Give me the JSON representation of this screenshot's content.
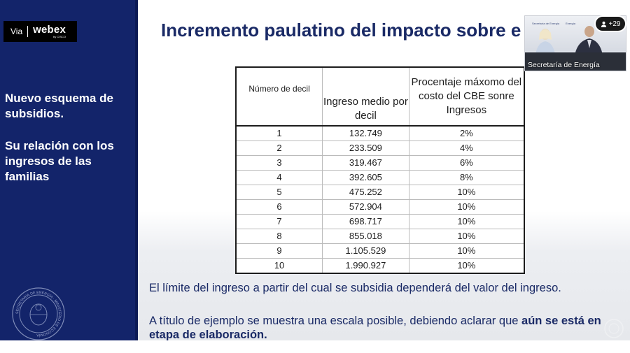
{
  "watermark": {
    "via": "Via",
    "brand": "webex",
    "brand_sub": "by CISCO"
  },
  "sidebar": {
    "heading1": "Nuevo esquema de subsidios.",
    "heading2": "Su relación con los ingresos  de las familias",
    "seal_label": "SECRETARÍA DE ENERGÍA · MINISTERIO DE ECONOMÍA"
  },
  "slide": {
    "title": "Incremento paulatino del impacto sobre e"
  },
  "table": {
    "headers": [
      "Número de decil",
      "Ingreso medio por decil",
      "Procentaje máxomo del costo del CBE sonre Ingresos"
    ],
    "rows": [
      [
        "1",
        "132.749",
        "2%"
      ],
      [
        "2",
        "233.509",
        "4%"
      ],
      [
        "3",
        "319.467",
        "6%"
      ],
      [
        "4",
        "392.605",
        "8%"
      ],
      [
        "5",
        "475.252",
        "10%"
      ],
      [
        "6",
        "572.904",
        "10%"
      ],
      [
        "7",
        "698.717",
        "10%"
      ],
      [
        "8",
        "855.018",
        "10%"
      ],
      [
        "9",
        "1.105.529",
        "10%"
      ],
      [
        "10",
        "1.990.927",
        "10%"
      ]
    ]
  },
  "paragraph1": "El límite del ingreso a partir del cual se subsidia dependerá del valor del ingreso.",
  "paragraph2": {
    "normal": "A título de ejemplo se muestra una escala posible, debiendo aclarar que ",
    "bold": "aún se está en etapa de elaboración."
  },
  "video": {
    "participant_name": "Secretaría de Energía",
    "participant_count": "+29",
    "sign_left": "Secretaría de Energía",
    "sign_mid": "Energía",
    "sign_right": "Secretaría de Energía"
  },
  "colors": {
    "sidebar": "#13246a",
    "title": "#1a2a66"
  }
}
